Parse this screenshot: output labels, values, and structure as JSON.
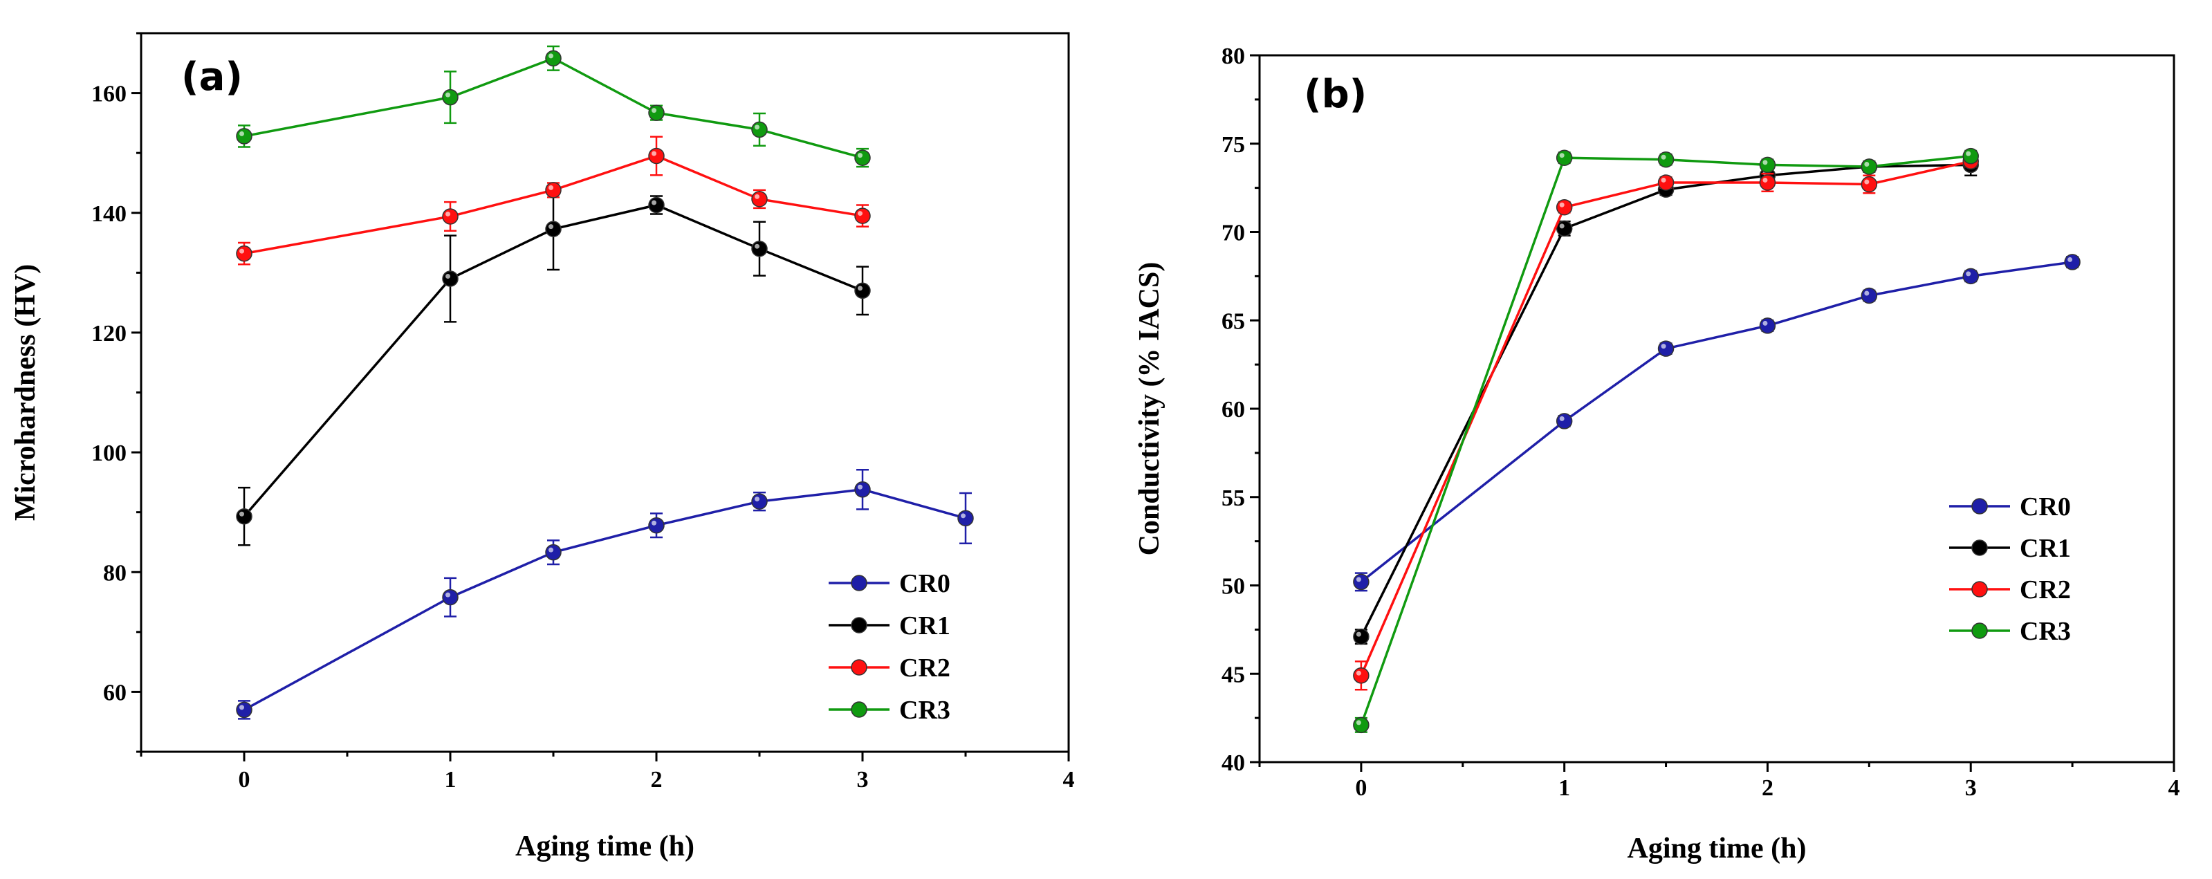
{
  "chart_data": [
    {
      "type": "line",
      "panel_label": "(a)",
      "xlabel": "Aging time (h)",
      "ylabel": "Microhardness (HV)",
      "xlim": [
        -0.5,
        4
      ],
      "ylim": [
        50,
        170
      ],
      "xticks": [
        "0",
        "1",
        "2",
        "3",
        "4"
      ],
      "yticks": [
        "60",
        "80",
        "100",
        "120",
        "140",
        "160"
      ],
      "legend_position": "lower-right",
      "series": [
        {
          "name": "CR0",
          "color": "#1f1fa8",
          "x": [
            0,
            1,
            1.5,
            2,
            2.5,
            3,
            3.5
          ],
          "y": [
            57,
            75.8,
            83.3,
            87.8,
            91.8,
            93.8,
            89
          ],
          "err": [
            1.5,
            3.2,
            2,
            2,
            1.5,
            3.3,
            4.2
          ]
        },
        {
          "name": "CR1",
          "color": "#000000",
          "x": [
            0,
            1,
            1.5,
            2,
            2.5,
            3
          ],
          "y": [
            89.3,
            129,
            137.3,
            141.3,
            134,
            127
          ],
          "err": [
            4.8,
            7.2,
            6.8,
            1.5,
            4.5,
            4
          ]
        },
        {
          "name": "CR2",
          "color": "#ff1010",
          "x": [
            0,
            1,
            1.5,
            2,
            2.5,
            3
          ],
          "y": [
            133.2,
            139.4,
            143.8,
            149.5,
            142.3,
            139.5
          ],
          "err": [
            1.8,
            2.4,
            1.2,
            3.2,
            1.5,
            1.8
          ]
        },
        {
          "name": "CR3",
          "color": "#109a10",
          "x": [
            0,
            1,
            1.5,
            2,
            2.5,
            3
          ],
          "y": [
            152.8,
            159.3,
            165.8,
            156.7,
            153.9,
            149.2
          ],
          "err": [
            1.8,
            4.3,
            2,
            1.2,
            2.7,
            1.5
          ]
        }
      ]
    },
    {
      "type": "line",
      "panel_label": "(b)",
      "xlabel": "Aging time (h)",
      "ylabel": "Conductivity (% IACS)",
      "xlim": [
        -0.5,
        4
      ],
      "ylim": [
        40,
        80
      ],
      "xticks": [
        "0",
        "1",
        "2",
        "3",
        "4"
      ],
      "yticks": [
        "40",
        "45",
        "50",
        "55",
        "60",
        "65",
        "70",
        "75",
        "80"
      ],
      "legend_position": "right",
      "series": [
        {
          "name": "CR0",
          "color": "#1f1fa8",
          "x": [
            0,
            1,
            1.5,
            2,
            2.5,
            3,
            3.5
          ],
          "y": [
            50.2,
            59.3,
            63.4,
            64.7,
            66.4,
            67.5,
            68.3
          ],
          "err": [
            0.5,
            0.3,
            0.3,
            0.3,
            0.3,
            0.3,
            0.3
          ]
        },
        {
          "name": "CR1",
          "color": "#000000",
          "x": [
            0,
            1,
            1.5,
            2,
            2.5,
            3
          ],
          "y": [
            47.1,
            70.2,
            72.4,
            73.2,
            73.7,
            73.8
          ],
          "err": [
            0.4,
            0.4,
            0.3,
            0.3,
            0.3,
            0.6
          ]
        },
        {
          "name": "CR2",
          "color": "#ff1010",
          "x": [
            0,
            1,
            1.5,
            2,
            2.5,
            3
          ],
          "y": [
            44.9,
            71.4,
            72.8,
            72.8,
            72.7,
            74
          ],
          "err": [
            0.8,
            0.3,
            0.3,
            0.5,
            0.5,
            0.3
          ]
        },
        {
          "name": "CR3",
          "color": "#109a10",
          "x": [
            0,
            1,
            1.5,
            2,
            2.5,
            3
          ],
          "y": [
            42.1,
            74.2,
            74.1,
            73.8,
            73.7,
            74.3
          ],
          "err": [
            0.4,
            0.3,
            0.3,
            0.3,
            0.3,
            0.3
          ]
        }
      ]
    }
  ]
}
